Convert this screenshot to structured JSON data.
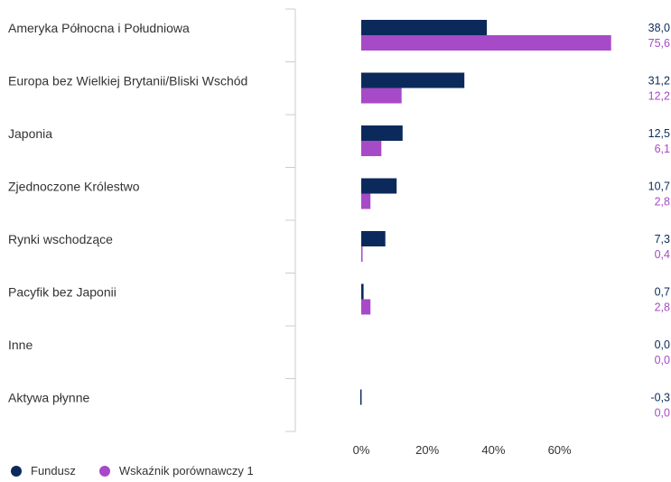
{
  "colors": {
    "fund": "#0b2a5b",
    "benchmark": "#a74ac7",
    "axis": "#cccccc",
    "text": "#333333"
  },
  "chart_data": {
    "type": "bar",
    "orientation": "horizontal",
    "categories": [
      "Ameryka Północna i Południowa",
      "Europa bez Wielkiej Brytanii/Bliski Wschód",
      "Japonia",
      "Zjednoczone Królestwo",
      "Rynki wschodzące",
      "Pacyfik bez Japonii",
      "Inne",
      "Aktywa płynne"
    ],
    "series": [
      {
        "name": "Fundusz",
        "color": "#0b2a5b",
        "values": [
          38.0,
          31.2,
          12.5,
          10.7,
          7.3,
          0.7,
          0.0,
          -0.3
        ],
        "labels": [
          "38,0",
          "31,2",
          "12,5",
          "10,7",
          "7,3",
          "0,7",
          "0,0",
          "-0,3"
        ]
      },
      {
        "name": "Wskaźnik porównawczy 1",
        "color": "#a74ac7",
        "values": [
          75.6,
          12.2,
          6.1,
          2.8,
          0.4,
          2.8,
          0.0,
          0.0
        ],
        "labels": [
          "75,6",
          "12,2",
          "6,1",
          "2,8",
          "0,4",
          "2,8",
          "0,0",
          "0,0"
        ]
      }
    ],
    "xticks": [
      0,
      20,
      40,
      60
    ],
    "xtick_labels": [
      "0%",
      "20%",
      "40%",
      "60%"
    ],
    "xlim": [
      -22,
      78
    ],
    "legend_position": "bottom-left",
    "grid": false
  }
}
